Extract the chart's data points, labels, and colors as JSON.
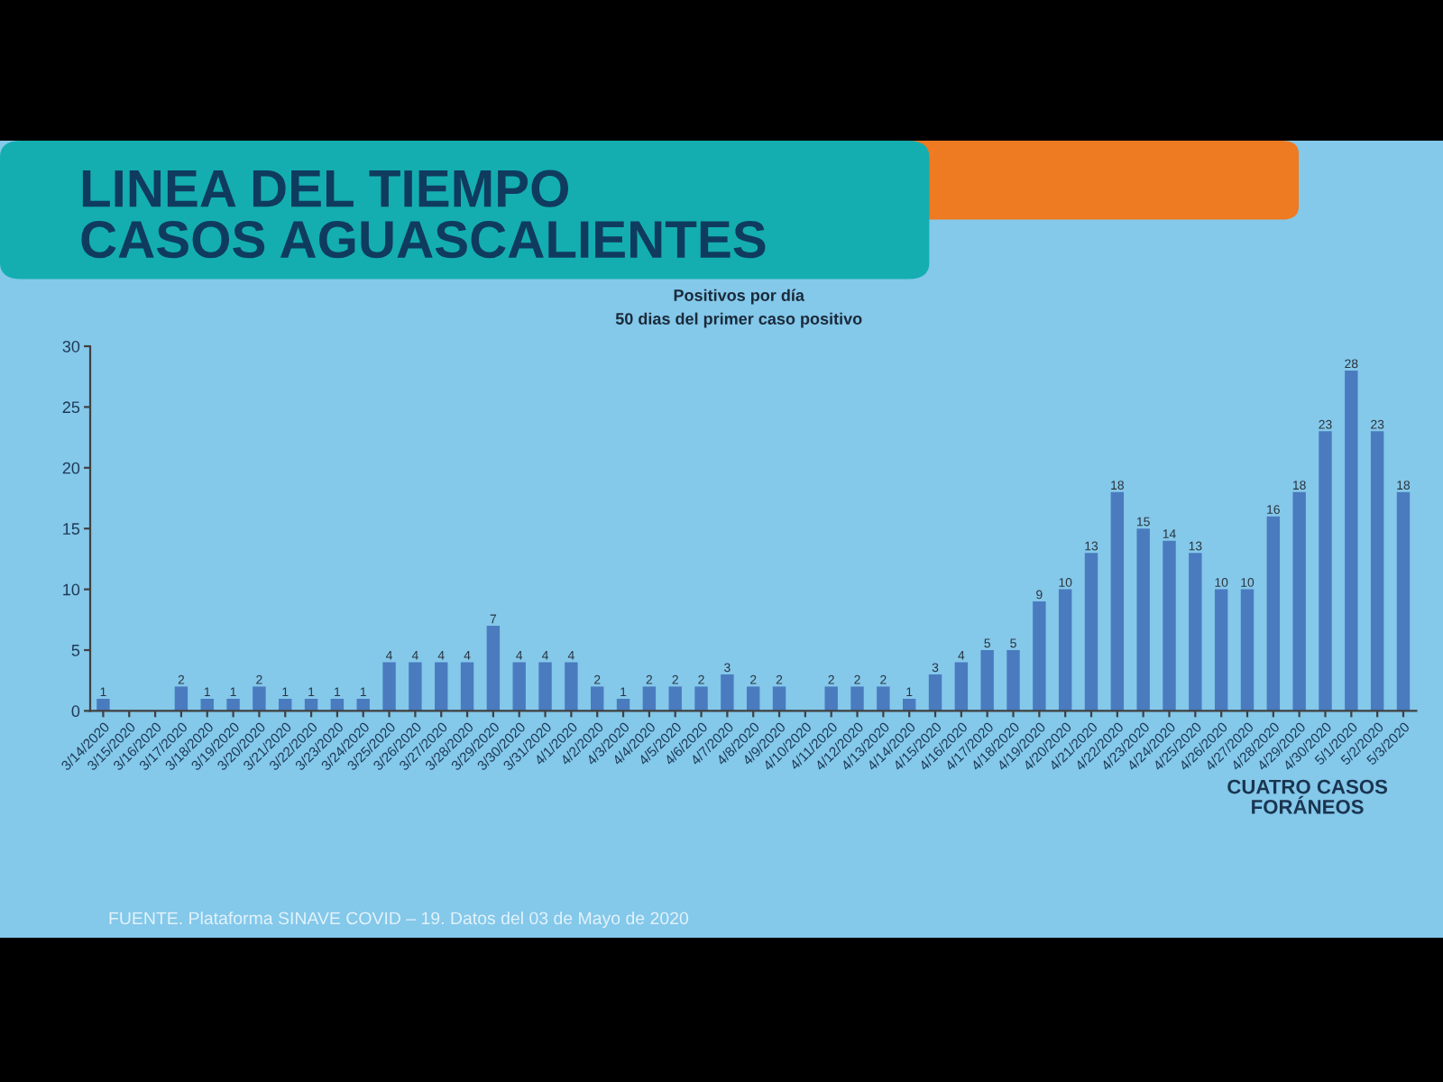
{
  "chart_data": {
    "type": "bar",
    "title": "LINEA DEL TIEMPO\nCASOS AGUASCALIENTES",
    "subtitle": "Positivos por día\n50 dias del primer caso positivo",
    "categories": [
      "3/14/2020",
      "3/15/2020",
      "3/16/2020",
      "3/17/2020",
      "3/18/2020",
      "3/19/2020",
      "3/20/2020",
      "3/21/2020",
      "3/22/2020",
      "3/23/2020",
      "3/24/2020",
      "3/25/2020",
      "3/26/2020",
      "3/27/2020",
      "3/28/2020",
      "3/29/2020",
      "3/30/2020",
      "3/31/2020",
      "4/1/2020",
      "4/2/2020",
      "4/3/2020",
      "4/4/2020",
      "4/5/2020",
      "4/6/2020",
      "4/7/2020",
      "4/8/2020",
      "4/9/2020",
      "4/10/2020",
      "4/11/2020",
      "4/12/2020",
      "4/13/2020",
      "4/14/2020",
      "4/15/2020",
      "4/16/2020",
      "4/17/2020",
      "4/18/2020",
      "4/19/2020",
      "4/20/2020",
      "4/21/2020",
      "4/22/2020",
      "4/23/2020",
      "4/24/2020",
      "4/25/2020",
      "4/26/2020",
      "4/27/2020",
      "4/28/2020",
      "4/29/2020",
      "4/30/2020",
      "5/1/2020",
      "5/2/2020",
      "5/3/2020"
    ],
    "values": [
      1,
      0,
      0,
      2,
      1,
      1,
      2,
      1,
      1,
      1,
      1,
      4,
      4,
      4,
      4,
      7,
      4,
      4,
      4,
      2,
      1,
      2,
      2,
      2,
      3,
      2,
      2,
      0,
      2,
      2,
      2,
      1,
      3,
      4,
      5,
      5,
      9,
      10,
      13,
      18,
      15,
      14,
      13,
      10,
      10,
      16,
      18,
      23,
      28,
      23,
      18
    ],
    "value_labels": [
      "1",
      null,
      null,
      "2",
      "1",
      "1",
      "2",
      "1",
      "1",
      "1",
      "1",
      "4",
      "4",
      "4",
      "4",
      "7",
      "4",
      "4",
      "4",
      "2",
      "1",
      "2",
      "2",
      "2",
      "3",
      "2",
      "2",
      null,
      "2",
      "2",
      "2",
      "1",
      "3",
      "4",
      "5",
      "5",
      "9",
      "10",
      "13",
      "18",
      "15",
      "14",
      "13",
      "10",
      "10",
      "16",
      "18",
      "23",
      "28",
      "23",
      "18"
    ],
    "color": "#4a7bbf",
    "ylim": [
      0,
      30
    ],
    "yticks": [
      0,
      5,
      10,
      15,
      20,
      25,
      30
    ],
    "grid": false,
    "annotations": [
      "CUATRO CASOS\nFORÁNEOS",
      "FUENTE. Plataforma SINAVE COVID – 19. Datos del 03 de Mayo de 2020"
    ]
  }
}
